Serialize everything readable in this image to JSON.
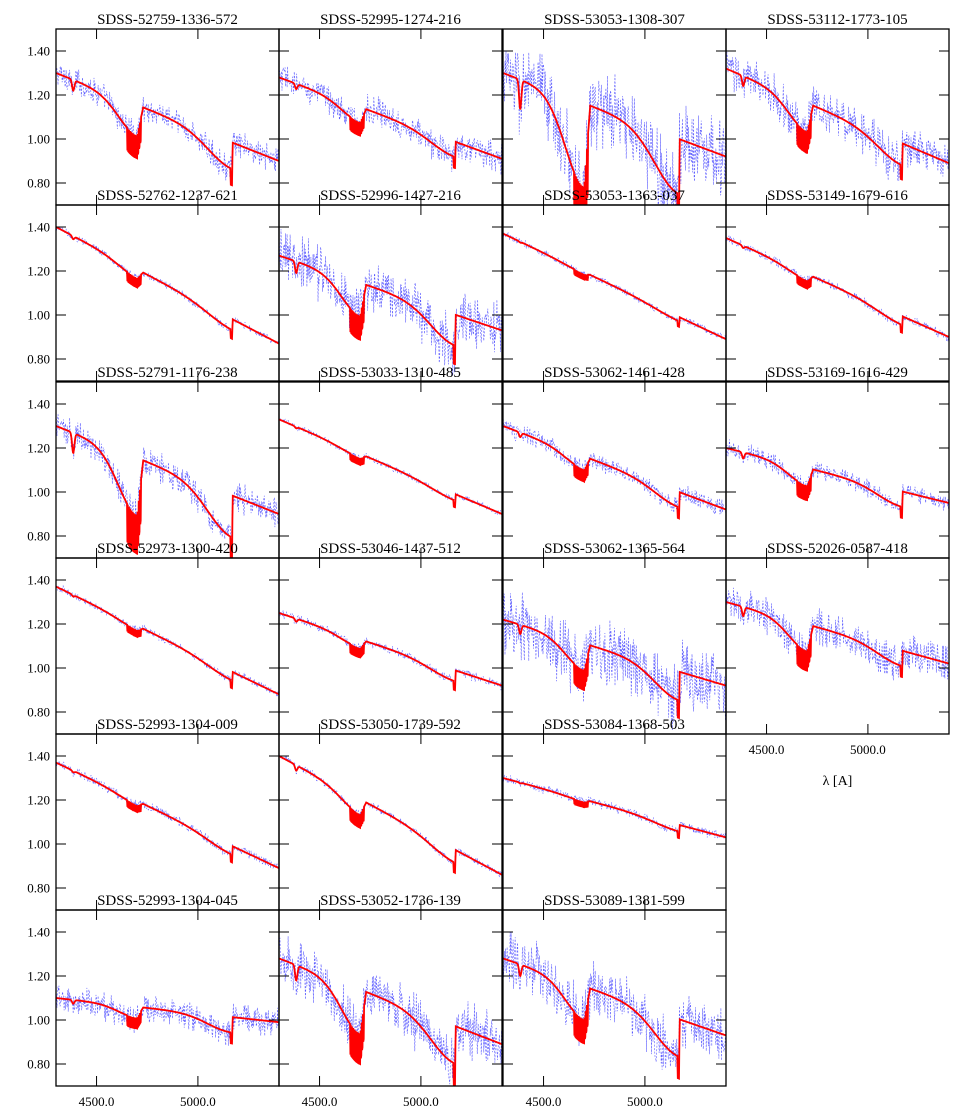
{
  "chart_data": {
    "type": "line",
    "layout": {
      "columns": 4,
      "rows": 6
    },
    "xlim": [
      4300,
      5400
    ],
    "ylim": [
      0.7,
      1.5
    ],
    "xticks": [
      4500,
      5000
    ],
    "xtick_labels": [
      "4500.0",
      "5000.0"
    ],
    "yticks": [
      0.8,
      1.0,
      1.2,
      1.4
    ],
    "ytick_labels": [
      "0.80",
      "1.00",
      "1.20",
      "1.40"
    ],
    "xlabel": "λ [A]",
    "series_styles": {
      "observed": {
        "color": "#3b3bff",
        "style": "dashed"
      },
      "model": {
        "color": "#ff0000",
        "style": "solid"
      }
    },
    "panels": [
      {
        "title": "SDSS-52759-1336-572",
        "row": 0,
        "col": 0,
        "start": 1.3,
        "end": 0.9,
        "dip1": 0.14,
        "dip2": 0.12,
        "noise": 0.045
      },
      {
        "title": "SDSS-52995-1274-216",
        "row": 0,
        "col": 1,
        "start": 1.28,
        "end": 0.91,
        "dip1": 0.07,
        "dip2": 0.07,
        "noise": 0.05
      },
      {
        "title": "SDSS-53053-1308-307",
        "row": 0,
        "col": 2,
        "start": 1.3,
        "end": 0.92,
        "dip1": 0.38,
        "dip2": 0.25,
        "noise": 0.13
      },
      {
        "title": "SDSS-53112-1773-105",
        "row": 0,
        "col": 3,
        "start": 1.32,
        "end": 0.89,
        "dip1": 0.13,
        "dip2": 0.1,
        "noise": 0.07
      },
      {
        "title": "SDSS-52762-1237-621",
        "row": 1,
        "col": 0,
        "start": 1.4,
        "end": 0.87,
        "dip1": 0.04,
        "dip2": 0.05,
        "noise": 0.012
      },
      {
        "title": "SDSS-52996-1427-216",
        "row": 1,
        "col": 1,
        "start": 1.27,
        "end": 0.93,
        "dip1": 0.15,
        "dip2": 0.14,
        "noise": 0.09
      },
      {
        "title": "SDSS-53053-1363-037",
        "row": 1,
        "col": 2,
        "start": 1.37,
        "end": 0.89,
        "dip1": 0.01,
        "dip2": 0.02,
        "noise": 0.012
      },
      {
        "title": "SDSS-53149-1679-616",
        "row": 1,
        "col": 3,
        "start": 1.35,
        "end": 0.9,
        "dip1": 0.03,
        "dip2": 0.04,
        "noise": 0.015
      },
      {
        "title": "SDSS-52791-1176-238",
        "row": 2,
        "col": 0,
        "start": 1.3,
        "end": 0.9,
        "dip1": 0.26,
        "dip2": 0.19,
        "noise": 0.05
      },
      {
        "title": "SDSS-53033-1310-485",
        "row": 2,
        "col": 1,
        "start": 1.33,
        "end": 0.9,
        "dip1": 0.02,
        "dip2": 0.03,
        "noise": 0.01
      },
      {
        "title": "SDSS-53062-1461-428",
        "row": 2,
        "col": 2,
        "start": 1.3,
        "end": 0.92,
        "dip1": 0.06,
        "dip2": 0.07,
        "noise": 0.03
      },
      {
        "title": "SDSS-53169-1616-429",
        "row": 2,
        "col": 3,
        "start": 1.2,
        "end": 0.95,
        "dip1": 0.08,
        "dip2": 0.07,
        "noise": 0.03
      },
      {
        "title": "SDSS-52973-1300-420",
        "row": 3,
        "col": 0,
        "start": 1.37,
        "end": 0.88,
        "dip1": 0.02,
        "dip2": 0.04,
        "noise": 0.012
      },
      {
        "title": "SDSS-53046-1437-512",
        "row": 3,
        "col": 1,
        "start": 1.25,
        "end": 0.92,
        "dip1": 0.04,
        "dip2": 0.05,
        "noise": 0.015
      },
      {
        "title": "SDSS-53062-1365-564",
        "row": 3,
        "col": 2,
        "start": 1.22,
        "end": 0.92,
        "dip1": 0.12,
        "dip2": 0.13,
        "noise": 0.11
      },
      {
        "title": "SDSS-52026-0587-418",
        "row": 3,
        "col": 3,
        "start": 1.3,
        "end": 1.02,
        "dip1": 0.12,
        "dip2": 0.07,
        "noise": 0.06
      },
      {
        "title": "SDSS-52993-1304-009",
        "row": 4,
        "col": 0,
        "start": 1.37,
        "end": 0.89,
        "dip1": 0.02,
        "dip2": 0.04,
        "noise": 0.015
      },
      {
        "title": "SDSS-53050-1739-592",
        "row": 4,
        "col": 1,
        "start": 1.4,
        "end": 0.86,
        "dip1": 0.07,
        "dip2": 0.06,
        "noise": 0.012
      },
      {
        "title": "SDSS-53084-1368-503",
        "row": 4,
        "col": 2,
        "start": 1.3,
        "end": 1.03,
        "dip1": 0.01,
        "dip2": 0.03,
        "noise": 0.015
      },
      {
        "title": "SDSS-52993-1304-045",
        "row": 5,
        "col": 0,
        "start": 1.1,
        "end": 0.99,
        "dip1": 0.05,
        "dip2": 0.07,
        "noise": 0.05
      },
      {
        "title": "SDSS-53052-1736-139",
        "row": 5,
        "col": 1,
        "start": 1.28,
        "end": 0.89,
        "dip1": 0.2,
        "dip2": 0.17,
        "noise": 0.09
      },
      {
        "title": "SDSS-53089-1381-599",
        "row": 5,
        "col": 2,
        "start": 1.28,
        "end": 0.93,
        "dip1": 0.15,
        "dip2": 0.17,
        "noise": 0.09
      }
    ]
  }
}
